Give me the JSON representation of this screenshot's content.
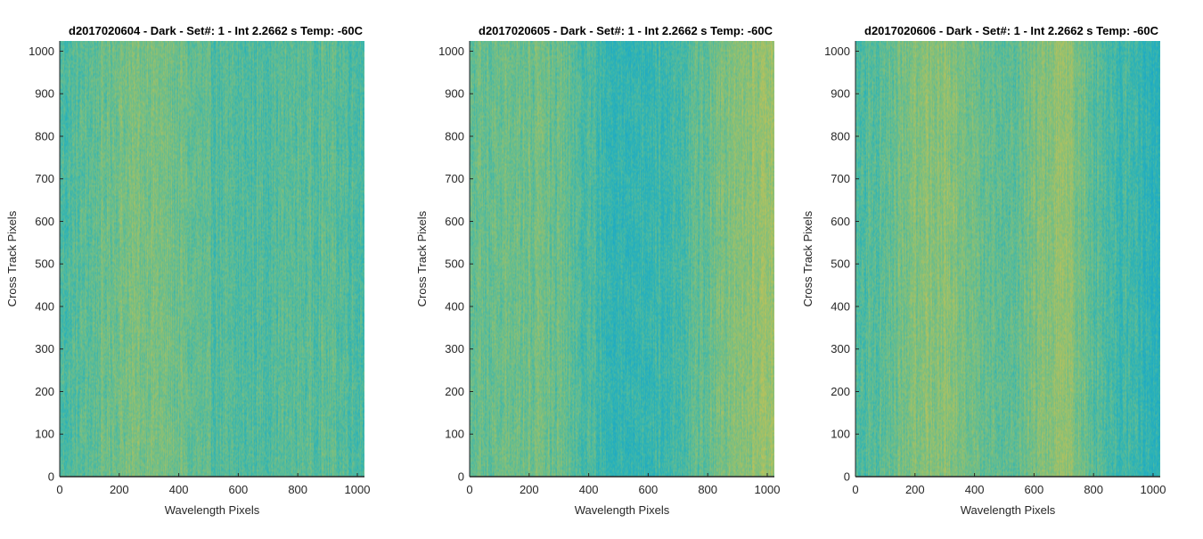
{
  "chart_data": [
    {
      "type": "heatmap",
      "title": "d2017020604 - Dark - Set#: 1 - Int 2.2662 s Temp: -60C",
      "xlabel": "Wavelength Pixels",
      "ylabel": "Cross Track Pixels",
      "xlim": [
        0,
        1024
      ],
      "ylim": [
        0,
        1024
      ],
      "xticks": [
        0,
        200,
        400,
        600,
        800,
        1000
      ],
      "yticks": [
        0,
        100,
        200,
        300,
        400,
        500,
        600,
        700,
        800,
        900,
        1000
      ],
      "colormap": [
        "#1aa7c9",
        "#2db3b6",
        "#5ebc95",
        "#8fc072",
        "#bcc25a"
      ],
      "column_profile": [
        {
          "x": 0,
          "level": 0.4
        },
        {
          "x": 100,
          "level": 0.5
        },
        {
          "x": 200,
          "level": 0.62
        },
        {
          "x": 300,
          "level": 0.66
        },
        {
          "x": 400,
          "level": 0.58
        },
        {
          "x": 500,
          "level": 0.47
        },
        {
          "x": 600,
          "level": 0.42
        },
        {
          "x": 700,
          "level": 0.46
        },
        {
          "x": 800,
          "level": 0.48
        },
        {
          "x": 900,
          "level": 0.5
        },
        {
          "x": 1024,
          "level": 0.42
        }
      ]
    },
    {
      "type": "heatmap",
      "title": "d2017020605 - Dark - Set#: 1 - Int 2.2662 s Temp: -60C",
      "xlabel": "Wavelength Pixels",
      "ylabel": "Cross Track Pixels",
      "xlim": [
        0,
        1024
      ],
      "ylim": [
        0,
        1024
      ],
      "xticks": [
        0,
        200,
        400,
        600,
        800,
        1000
      ],
      "yticks": [
        0,
        100,
        200,
        300,
        400,
        500,
        600,
        700,
        800,
        900,
        1000
      ],
      "colormap": [
        "#1aa7c9",
        "#2db3b6",
        "#5ebc95",
        "#8fc072",
        "#bcc25a"
      ],
      "column_profile": [
        {
          "x": 0,
          "level": 0.5
        },
        {
          "x": 100,
          "level": 0.58
        },
        {
          "x": 200,
          "level": 0.6
        },
        {
          "x": 300,
          "level": 0.55
        },
        {
          "x": 400,
          "level": 0.4
        },
        {
          "x": 500,
          "level": 0.26
        },
        {
          "x": 600,
          "level": 0.3
        },
        {
          "x": 700,
          "level": 0.4
        },
        {
          "x": 800,
          "level": 0.55
        },
        {
          "x": 900,
          "level": 0.72
        },
        {
          "x": 1024,
          "level": 0.82
        }
      ]
    },
    {
      "type": "heatmap",
      "title": "d2017020606 - Dark - Set#: 1 - Int 2.2662 s Temp: -60C",
      "xlabel": "Wavelength Pixels",
      "ylabel": "Cross Track Pixels",
      "xlim": [
        0,
        1024
      ],
      "ylim": [
        0,
        1024
      ],
      "xticks": [
        0,
        200,
        400,
        600,
        800,
        1000
      ],
      "yticks": [
        0,
        100,
        200,
        300,
        400,
        500,
        600,
        700,
        800,
        900,
        1000
      ],
      "colormap": [
        "#1aa7c9",
        "#2db3b6",
        "#5ebc95",
        "#8fc072",
        "#bcc25a"
      ],
      "column_profile": [
        {
          "x": 0,
          "level": 0.42
        },
        {
          "x": 100,
          "level": 0.5
        },
        {
          "x": 200,
          "level": 0.68
        },
        {
          "x": 300,
          "level": 0.76
        },
        {
          "x": 400,
          "level": 0.6
        },
        {
          "x": 500,
          "level": 0.48
        },
        {
          "x": 600,
          "level": 0.62
        },
        {
          "x": 700,
          "level": 0.8
        },
        {
          "x": 800,
          "level": 0.46
        },
        {
          "x": 900,
          "level": 0.34
        },
        {
          "x": 1024,
          "level": 0.24
        }
      ]
    }
  ]
}
